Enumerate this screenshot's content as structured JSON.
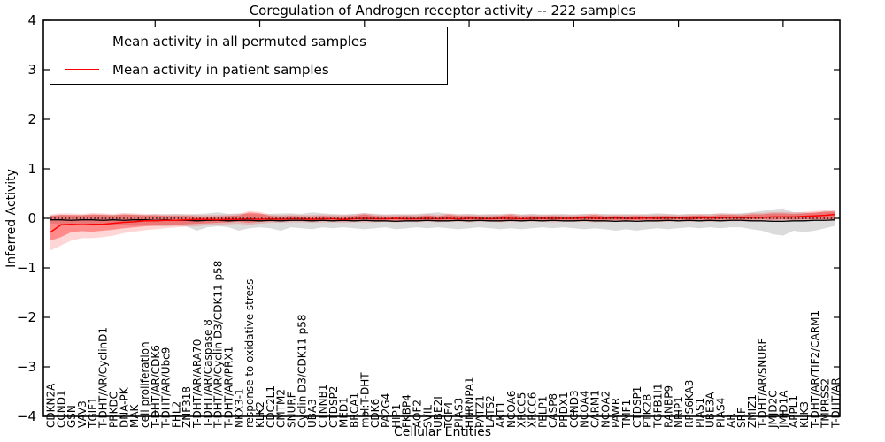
{
  "chart_data": {
    "type": "line",
    "title": "Coregulation of Androgen receptor activity -- 222 samples",
    "xlabel": "Cellular Entities",
    "ylabel": "Inferred Activity",
    "ylim": [
      -4,
      4
    ],
    "yticks": [
      4,
      3,
      2,
      1,
      0,
      -1,
      -2,
      -3,
      -4
    ],
    "grid": false,
    "zero_line": 0,
    "legend_position": "upper left",
    "categories": [
      "CDKN2A",
      "CCND1",
      "GSN",
      "VAV3",
      "TGIF1",
      "T-DHT/AR/CyclinD1",
      "PRKDC",
      "DNA-PK",
      "MAK",
      "cell proliferation",
      "T-DHT/AR/CDK6",
      "T-DHT/AR/Ubc9",
      "FHL2",
      "ZNF318",
      "T-DHT/AR/ARA70",
      "T-DHT/AR/Caspase 8",
      "T-DHT/AR/Cyclin D3/CDK11 p58",
      "T-DHT/AR/PRX1",
      "NKX3-1",
      "response to oxidative stress",
      "KLK2",
      "CDC2L1",
      "CMTM2",
      "SNURF",
      "Cyclin D3/CDK11 p58",
      "UBA3",
      "CTNNB1",
      "CTDSP2",
      "MED1",
      "BRCA1",
      "mol:T-DHT",
      "CDK6",
      "PA2G4",
      "HIP1",
      "FKBP4",
      "AOF2",
      "SVIL",
      "UBE2I",
      "TCF4",
      "PIAS3",
      "HNRNPA1",
      "PATZ1",
      "LATS2",
      "AKT1",
      "NCOA6",
      "XRCC5",
      "XRCC6",
      "PELP1",
      "CASP8",
      "PRDX1",
      "CCND3",
      "NCOA4",
      "CARM1",
      "NCOA2",
      "PAWR",
      "TMF1",
      "CTDSP1",
      "PTK2B",
      "TGFB1I1",
      "RANBP9",
      "NRIP1",
      "RPS6KA3",
      "PIAS1",
      "UBE3A",
      "PIAS4",
      "AR",
      "SRF",
      "ZMIZ1",
      "T-DHT/AR/SNURF",
      "JMJD2C",
      "JMJD1A",
      "APPL1",
      "KLK3",
      "T-DHT/AR/TIF2/CARM1",
      "TMPRSS2",
      "T-DHT/AR"
    ],
    "series": [
      {
        "name": "Mean activity in all permuted samples",
        "color": "#000000",
        "band_color": "rgba(110,110,110,0.25)",
        "mean": [
          -0.03,
          -0.03,
          -0.04,
          -0.03,
          -0.03,
          -0.04,
          -0.03,
          -0.04,
          -0.03,
          -0.03,
          -0.04,
          -0.03,
          -0.04,
          -0.04,
          -0.05,
          -0.04,
          -0.04,
          -0.05,
          -0.04,
          -0.04,
          -0.05,
          -0.04,
          -0.05,
          -0.04,
          -0.04,
          -0.05,
          -0.04,
          -0.05,
          -0.04,
          -0.05,
          -0.04,
          -0.05,
          -0.05,
          -0.06,
          -0.05,
          -0.05,
          -0.04,
          -0.05,
          -0.05,
          -0.04,
          -0.05,
          -0.04,
          -0.05,
          -0.05,
          -0.04,
          -0.05,
          -0.04,
          -0.05,
          -0.04,
          -0.05,
          -0.05,
          -0.04,
          -0.05,
          -0.05,
          -0.06,
          -0.05,
          -0.06,
          -0.05,
          -0.05,
          -0.04,
          -0.05,
          -0.04,
          -0.05,
          -0.04,
          -0.05,
          -0.04,
          -0.04,
          -0.05,
          -0.05,
          -0.06,
          -0.06,
          -0.05,
          -0.05,
          -0.04,
          -0.04,
          -0.03
        ],
        "band_upper": [
          0.06,
          0.07,
          0.06,
          0.07,
          0.07,
          0.08,
          0.07,
          0.08,
          0.08,
          0.07,
          0.08,
          0.08,
          0.09,
          0.08,
          0.09,
          0.1,
          0.12,
          0.09,
          0.1,
          0.09,
          0.08,
          0.09,
          0.1,
          0.1,
          0.09,
          0.12,
          0.1,
          0.09,
          0.08,
          0.09,
          0.1,
          0.09,
          0.08,
          0.09,
          0.08,
          0.09,
          0.1,
          0.12,
          0.09,
          0.08,
          0.09,
          0.08,
          0.09,
          0.08,
          0.09,
          0.08,
          0.09,
          0.08,
          0.08,
          0.09,
          0.08,
          0.09,
          0.08,
          0.09,
          0.08,
          0.09,
          0.08,
          0.09,
          0.1,
          0.09,
          0.08,
          0.09,
          0.08,
          0.09,
          0.1,
          0.09,
          0.1,
          0.12,
          0.15,
          0.18,
          0.2,
          0.12,
          0.12,
          0.1,
          0.15,
          0.12
        ],
        "band_lower": [
          -0.1,
          -0.12,
          -0.12,
          -0.13,
          -0.12,
          -0.14,
          -0.13,
          -0.14,
          -0.15,
          -0.14,
          -0.15,
          -0.16,
          -0.15,
          -0.16,
          -0.25,
          -0.18,
          -0.16,
          -0.18,
          -0.25,
          -0.2,
          -0.18,
          -0.2,
          -0.25,
          -0.18,
          -0.2,
          -0.22,
          -0.18,
          -0.2,
          -0.18,
          -0.2,
          -0.22,
          -0.2,
          -0.18,
          -0.22,
          -0.2,
          -0.18,
          -0.2,
          -0.18,
          -0.2,
          -0.22,
          -0.2,
          -0.18,
          -0.2,
          -0.22,
          -0.2,
          -0.22,
          -0.2,
          -0.18,
          -0.2,
          -0.18,
          -0.2,
          -0.22,
          -0.2,
          -0.22,
          -0.25,
          -0.22,
          -0.25,
          -0.22,
          -0.2,
          -0.22,
          -0.2,
          -0.18,
          -0.2,
          -0.18,
          -0.2,
          -0.18,
          -0.18,
          -0.22,
          -0.25,
          -0.32,
          -0.35,
          -0.25,
          -0.28,
          -0.25,
          -0.2,
          -0.15
        ]
      },
      {
        "name": "Mean activity in patient samples",
        "color": "#ff0000",
        "band_color": "rgba(255,0,0,0.35)",
        "band_outer_color": "rgba(255,0,0,0.16)",
        "mean": [
          -0.28,
          -0.13,
          -0.12,
          -0.13,
          -0.12,
          -0.12,
          -0.1,
          -0.08,
          -0.07,
          -0.05,
          -0.05,
          -0.04,
          -0.04,
          -0.03,
          -0.02,
          -0.02,
          -0.03,
          -0.02,
          -0.02,
          -0.01,
          -0.02,
          -0.01,
          -0.02,
          -0.01,
          -0.01,
          -0.02,
          -0.01,
          -0.01,
          -0.02,
          -0.01,
          0,
          -0.01,
          -0.01,
          0,
          -0.01,
          -0.01,
          0,
          -0.01,
          0,
          -0.01,
          0,
          0,
          -0.01,
          0,
          0,
          -0.01,
          0,
          0,
          0,
          0,
          0,
          0.01,
          0,
          0,
          0.01,
          0,
          0,
          0.01,
          0,
          0.01,
          0.01,
          0,
          0.01,
          0.01,
          0.01,
          0.02,
          0.01,
          0.02,
          0.02,
          0.03,
          0.03,
          0.03,
          0.04,
          0.05,
          0.06,
          0.08
        ],
        "band_upper": [
          0.05,
          0.07,
          0.07,
          0.06,
          0.08,
          0.07,
          0.06,
          0.08,
          0.07,
          0.06,
          0.06,
          0.05,
          0.05,
          0.05,
          0.04,
          0.04,
          0.04,
          0.05,
          0.06,
          0.12,
          0.1,
          0.05,
          0.04,
          0.05,
          0.04,
          0.04,
          0.05,
          0.04,
          0.04,
          0.05,
          0.08,
          0.05,
          0.04,
          0.04,
          0.05,
          0.04,
          0.06,
          0.04,
          0.07,
          0.05,
          0.05,
          0.04,
          0.04,
          0.05,
          0.07,
          0.04,
          0.05,
          0.04,
          0.05,
          0.04,
          0.04,
          0.05,
          0.07,
          0.04,
          0.05,
          0.04,
          0.05,
          0.04,
          0.05,
          0.05,
          0.04,
          0.05,
          0.06,
          0.05,
          0.07,
          0.07,
          0.06,
          0.08,
          0.08,
          0.1,
          0.1,
          0.09,
          0.1,
          0.12,
          0.13,
          0.15
        ],
        "band_lower": [
          -0.45,
          -0.38,
          -0.28,
          -0.26,
          -0.27,
          -0.25,
          -0.23,
          -0.2,
          -0.18,
          -0.16,
          -0.15,
          -0.14,
          -0.13,
          -0.12,
          -0.11,
          -0.1,
          -0.09,
          -0.08,
          -0.07,
          -0.09,
          -0.07,
          -0.06,
          -0.06,
          -0.05,
          -0.05,
          -0.06,
          -0.05,
          -0.05,
          -0.06,
          -0.05,
          -0.05,
          -0.05,
          -0.04,
          -0.05,
          -0.04,
          -0.05,
          -0.04,
          -0.05,
          -0.04,
          -0.04,
          -0.05,
          -0.04,
          -0.04,
          -0.05,
          -0.04,
          -0.04,
          -0.04,
          -0.04,
          -0.05,
          -0.04,
          -0.04,
          -0.04,
          -0.05,
          -0.04,
          -0.04,
          -0.04,
          -0.04,
          -0.04,
          -0.04,
          -0.04,
          -0.03,
          -0.04,
          -0.03,
          -0.04,
          -0.03,
          -0.03,
          -0.03,
          -0.03,
          -0.02,
          -0.03,
          -0.02,
          -0.03,
          -0.02,
          -0.02,
          -0.02,
          -0.02
        ],
        "band_outer_upper": [
          0.08,
          0.1,
          0.1,
          0.09,
          0.11,
          0.1,
          0.09,
          0.11,
          0.1,
          0.09,
          0.09,
          0.08,
          0.08,
          0.08,
          0.07,
          0.07,
          0.07,
          0.08,
          0.09,
          0.15,
          0.13,
          0.08,
          0.07,
          0.08,
          0.07,
          0.07,
          0.08,
          0.07,
          0.07,
          0.08,
          0.11,
          0.08,
          0.07,
          0.07,
          0.08,
          0.07,
          0.09,
          0.07,
          0.1,
          0.08,
          0.08,
          0.07,
          0.07,
          0.08,
          0.1,
          0.07,
          0.08,
          0.07,
          0.08,
          0.07,
          0.07,
          0.08,
          0.1,
          0.07,
          0.08,
          0.07,
          0.08,
          0.07,
          0.08,
          0.08,
          0.07,
          0.08,
          0.09,
          0.08,
          0.1,
          0.1,
          0.09,
          0.11,
          0.11,
          0.13,
          0.13,
          0.12,
          0.13,
          0.15,
          0.16,
          0.18
        ],
        "band_outer_lower": [
          -0.65,
          -0.55,
          -0.45,
          -0.4,
          -0.4,
          -0.38,
          -0.35,
          -0.3,
          -0.27,
          -0.24,
          -0.22,
          -0.2,
          -0.18,
          -0.17,
          -0.16,
          -0.14,
          -0.13,
          -0.12,
          -0.11,
          -0.13,
          -0.11,
          -0.09,
          -0.09,
          -0.08,
          -0.08,
          -0.09,
          -0.08,
          -0.08,
          -0.09,
          -0.08,
          -0.08,
          -0.08,
          -0.07,
          -0.08,
          -0.07,
          -0.08,
          -0.07,
          -0.08,
          -0.07,
          -0.07,
          -0.08,
          -0.07,
          -0.07,
          -0.08,
          -0.07,
          -0.07,
          -0.07,
          -0.07,
          -0.08,
          -0.07,
          -0.07,
          -0.07,
          -0.08,
          -0.07,
          -0.07,
          -0.07,
          -0.07,
          -0.07,
          -0.07,
          -0.07,
          -0.06,
          -0.07,
          -0.06,
          -0.07,
          -0.06,
          -0.06,
          -0.06,
          -0.06,
          -0.05,
          -0.06,
          -0.05,
          -0.06,
          -0.05,
          -0.05,
          -0.05,
          -0.05
        ]
      }
    ]
  }
}
